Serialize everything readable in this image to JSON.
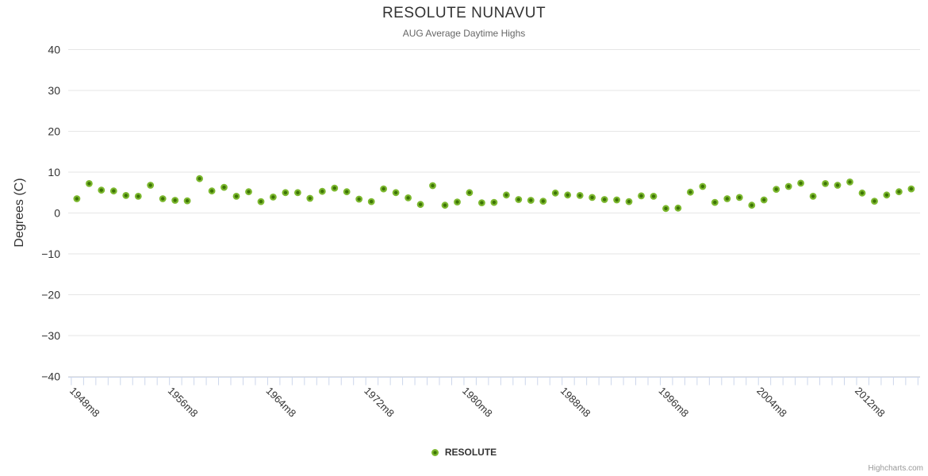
{
  "header": {
    "title": "RESOLUTE NUNAVUT",
    "subtitle": "AUG Average Daytime Highs"
  },
  "legend": {
    "label": "RESOLUTE",
    "position": "bottom"
  },
  "credits": {
    "label": "Highcharts.com"
  },
  "colors": {
    "series_ring": "#7cb82f",
    "series_core": "#3d7405",
    "gridline": "#e6e6e6",
    "axis_line": "#ccd6eb",
    "title_text": "#333333",
    "subtitle_text": "#666666",
    "axis_label_text": "#333333",
    "credits_text": "#999999",
    "background": "#ffffff"
  },
  "chart_data": {
    "type": "scatter",
    "title": "RESOLUTE NUNAVUT",
    "subtitle": "AUG Average Daytime Highs",
    "xlabel": "",
    "ylabel": "Degrees (C)",
    "ylim": [
      -40,
      40
    ],
    "ytick_interval": 10,
    "ytick_labels": [
      "40",
      "30",
      "20",
      "10",
      "0",
      "−10",
      "−20",
      "−30",
      "−40"
    ],
    "grid": "horizontal",
    "legend_position": "bottom",
    "x_start_year": 1948,
    "x_end_year": 2016,
    "x_month_suffix": "m8",
    "xtick_every": 8,
    "xtick_labels": [
      "1948m8",
      "1956m8",
      "1964m8",
      "1972m8",
      "1980m8",
      "1988m8",
      "1996m8",
      "2004m8",
      "2012m8"
    ],
    "series": [
      {
        "name": "RESOLUTE",
        "values": [
          3.5,
          7.2,
          5.6,
          5.4,
          4.3,
          4.1,
          6.8,
          3.5,
          3.1,
          3.0,
          8.4,
          5.4,
          6.3,
          4.1,
          5.2,
          2.8,
          3.9,
          5.0,
          5.0,
          3.6,
          5.3,
          6.1,
          5.2,
          3.4,
          2.8,
          5.9,
          5.0,
          3.7,
          2.1,
          6.7,
          1.9,
          2.7,
          5.0,
          2.5,
          2.6,
          4.4,
          3.3,
          3.1,
          2.9,
          4.9,
          4.4,
          4.3,
          3.8,
          3.3,
          3.2,
          2.8,
          4.2,
          4.1,
          1.1,
          1.2,
          5.1,
          6.5,
          2.6,
          3.5,
          3.8,
          1.9,
          3.2,
          5.8,
          6.5,
          7.3,
          4.1,
          7.2,
          6.8,
          7.6,
          4.9,
          2.9,
          4.4,
          5.2,
          5.9
        ]
      }
    ]
  }
}
